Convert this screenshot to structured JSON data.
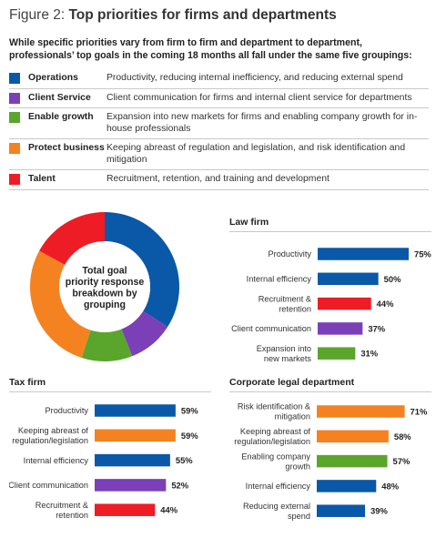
{
  "figure": {
    "label": "Figure 2:",
    "title": "Top priorities for firms and departments",
    "intro": "While specific priorities vary from firm to firm and department to department, professionals’ top goals in the coming 18 months all fall under the same five groupings:"
  },
  "colors": {
    "operations": "#0a58a8",
    "client_service": "#7b3fb8",
    "enable_growth": "#5aa52b",
    "protect_business": "#f58220",
    "talent": "#ee1c25"
  },
  "groupings": [
    {
      "name": "Operations",
      "description": "Productivity, reducing internal inefficiency, and reducing external spend",
      "color": "#0a58a8"
    },
    {
      "name": "Client Service",
      "description": "Client communication for firms and internal client service for departments",
      "color": "#7b3fb8"
    },
    {
      "name": "Enable growth",
      "description": "Expansion into new markets for firms and enabling company growth for in-house professionals",
      "color": "#5aa52b"
    },
    {
      "name": "Protect business",
      "description": "Keeping abreast of regulation and legislation, and risk identification and mitigation",
      "color": "#f58220"
    },
    {
      "name": "Talent",
      "description": "Recruitment, retention, and training and development",
      "color": "#ee1c25"
    }
  ],
  "chart_data": [
    {
      "type": "pie",
      "title": "Total goal priority response breakdown by grouping",
      "title_lines": [
        "Total goal",
        "priority response",
        "breakdown by",
        "grouping"
      ],
      "categories": [
        "Operations",
        "Client Service",
        "Enable growth",
        "Protect business",
        "Talent"
      ],
      "values": [
        34,
        10,
        11,
        28,
        17
      ],
      "colors": [
        "#0a58a8",
        "#7b3fb8",
        "#5aa52b",
        "#f58220",
        "#ee1c25"
      ]
    },
    {
      "type": "bar",
      "title": "Law firm",
      "orientation": "horizontal",
      "categories": [
        [
          "Productivity"
        ],
        [
          "Internal efficiency"
        ],
        [
          "Recruitment &",
          "retention"
        ],
        [
          "Client communication"
        ],
        [
          "Expansion into",
          "new markets"
        ]
      ],
      "values": [
        75,
        50,
        44,
        37,
        31
      ],
      "value_labels": [
        "75%",
        "50%",
        "44%",
        "37%",
        "31%"
      ],
      "colors": [
        "#0a58a8",
        "#0a58a8",
        "#ee1c25",
        "#7b3fb8",
        "#5aa52b"
      ],
      "xlim": [
        0,
        75
      ]
    },
    {
      "type": "bar",
      "title": "Tax firm",
      "orientation": "horizontal",
      "categories": [
        [
          "Productivity"
        ],
        [
          "Keeping abreast of",
          "regulation/legislation"
        ],
        [
          "Internal efficiency"
        ],
        [
          "Client communication"
        ],
        [
          "Recruitment &",
          "retention"
        ]
      ],
      "values": [
        59,
        59,
        55,
        52,
        44
      ],
      "value_labels": [
        "59%",
        "59%",
        "55%",
        "52%",
        "44%"
      ],
      "colors": [
        "#0a58a8",
        "#f58220",
        "#0a58a8",
        "#7b3fb8",
        "#ee1c25"
      ],
      "xlim": [
        0,
        75
      ]
    },
    {
      "type": "bar",
      "title": "Corporate legal department",
      "orientation": "horizontal",
      "categories": [
        [
          "Risk identification &",
          "mitigation"
        ],
        [
          "Keeping abreast of",
          "regulation/legislation"
        ],
        [
          "Enabling company",
          "growth"
        ],
        [
          "Internal efficiency"
        ],
        [
          "Reducing external",
          "spend"
        ]
      ],
      "values": [
        71,
        58,
        57,
        48,
        39
      ],
      "value_labels": [
        "71%",
        "58%",
        "57%",
        "48%",
        "39%"
      ],
      "colors": [
        "#f58220",
        "#f58220",
        "#5aa52b",
        "#0a58a8",
        "#0a58a8"
      ],
      "xlim": [
        0,
        75
      ]
    }
  ]
}
